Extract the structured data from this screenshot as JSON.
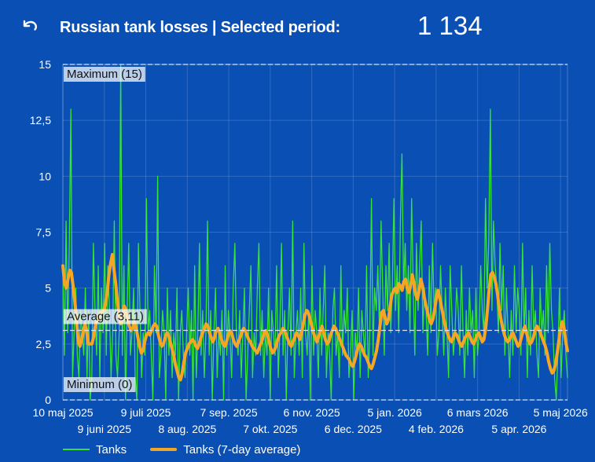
{
  "header": {
    "title": "Russian tank losses | Selected period:",
    "total": "1 134"
  },
  "colors": {
    "background": "#0a4fb4",
    "daily": "#37e23a",
    "average": "#f5a623",
    "refline": "#d7e3f5"
  },
  "chart_data": {
    "type": "line",
    "x_range": [
      "2025-05-10",
      "2026-05-10"
    ],
    "ylim": [
      0,
      15
    ],
    "yticks": [
      "0",
      "2,5",
      "5",
      "7,5",
      "10",
      "12,5",
      "15"
    ],
    "xticks_top": [
      {
        "label": "10 maj 2025",
        "date": "2025-05-10"
      },
      {
        "label": "9 juli 2025",
        "date": "2025-07-09"
      },
      {
        "label": "7 sep. 2025",
        "date": "2025-09-07"
      },
      {
        "label": "6 nov. 2025",
        "date": "2025-11-06"
      },
      {
        "label": "5 jan. 2026",
        "date": "2026-01-05"
      },
      {
        "label": "6 mars 2026",
        "date": "2026-03-06"
      },
      {
        "label": "5 maj 2026",
        "date": "2026-05-05"
      }
    ],
    "xticks_bottom": [
      {
        "label": "9 juni 2025",
        "date": "2025-06-09"
      },
      {
        "label": "8 aug. 2025",
        "date": "2025-08-08"
      },
      {
        "label": "7 okt. 2025",
        "date": "2025-10-07"
      },
      {
        "label": "6 dec. 2025",
        "date": "2025-12-06"
      },
      {
        "label": "4 feb. 2026",
        "date": "2026-02-04"
      },
      {
        "label": "5 apr. 2026",
        "date": "2026-04-05"
      }
    ],
    "reference_lines": [
      {
        "label": "Maximum (15)",
        "value": 15
      },
      {
        "label": "Average (3,11)",
        "value": 3.11
      },
      {
        "label": "Minimum (0)",
        "value": 0
      }
    ],
    "grid": true,
    "series": [
      {
        "name": "Tanks",
        "values": [
          6,
          2,
          8,
          3,
          7,
          13,
          1,
          3,
          5,
          2,
          1,
          4,
          3,
          2,
          5,
          1,
          4,
          0,
          1,
          7,
          4,
          2,
          6,
          1,
          5,
          3,
          7,
          2,
          6,
          4,
          1,
          3,
          8,
          2,
          1,
          3,
          15,
          2,
          6,
          0,
          4,
          7,
          2,
          3,
          5,
          1,
          0,
          7,
          4,
          1,
          3,
          2,
          9,
          3,
          4,
          2,
          0,
          6,
          3,
          10,
          1,
          2,
          4,
          3,
          0,
          5,
          2,
          4,
          1,
          3,
          2,
          5,
          0,
          3,
          4,
          2,
          1,
          3,
          5,
          2,
          4,
          0,
          6,
          1,
          3,
          7,
          2,
          4,
          1,
          3,
          8,
          2,
          4,
          0,
          3,
          5,
          1,
          3,
          2,
          4,
          0,
          6,
          2,
          4,
          3,
          1,
          5,
          7,
          3,
          2,
          4,
          1,
          3,
          5,
          0,
          2,
          4,
          6,
          1,
          3,
          2,
          5,
          7,
          2,
          4,
          1,
          3,
          2,
          5,
          0,
          4,
          3,
          2,
          6,
          1,
          3,
          7,
          2,
          4,
          0,
          3,
          5,
          2,
          8,
          1,
          3,
          4,
          2,
          5,
          1,
          7,
          3,
          2,
          4,
          0,
          6,
          2,
          4,
          3,
          1,
          5,
          2,
          4,
          6,
          1,
          3,
          2,
          0,
          4,
          5,
          2,
          3,
          1,
          6,
          2,
          4,
          3,
          5,
          1,
          2,
          4,
          0,
          3,
          2,
          5,
          1,
          4,
          3,
          2,
          6,
          1,
          3,
          9,
          2,
          5,
          4,
          6,
          3,
          8,
          5,
          2,
          6,
          4,
          7,
          3,
          5,
          9,
          4,
          6,
          3,
          8,
          11,
          5,
          7,
          4,
          6,
          3,
          9,
          5,
          2,
          7,
          4,
          6,
          8,
          3,
          5,
          4,
          2,
          6,
          3,
          7,
          4,
          5,
          2,
          3,
          6,
          4,
          2,
          5,
          3,
          1,
          6,
          4,
          2,
          3,
          5,
          4,
          2,
          6,
          3,
          1,
          4,
          2,
          5,
          3,
          4,
          1,
          5,
          2,
          3,
          6,
          4,
          3,
          9,
          5,
          7,
          13,
          4,
          8,
          6,
          5,
          3,
          7,
          4,
          6,
          2,
          5,
          3,
          1,
          4,
          2,
          6,
          3,
          5,
          4,
          2,
          7,
          3,
          5,
          1,
          4,
          2,
          6,
          3,
          4,
          2,
          1,
          5,
          3,
          4,
          2,
          6,
          3,
          7,
          4,
          3,
          1,
          0,
          2,
          5,
          1,
          3,
          4,
          2,
          1
        ]
      },
      {
        "name": "Tanks (7-day average)",
        "values": [
          6.0,
          5.2,
          5.0,
          5.4,
          5.8,
          5.7,
          5.1,
          4.4,
          3.6,
          2.6,
          2.4,
          2.7,
          3.1,
          3.4,
          3.0,
          2.5,
          2.5,
          2.5,
          2.8,
          3.3,
          3.6,
          3.7,
          3.9,
          3.9,
          4.0,
          4.3,
          4.8,
          5.6,
          6.1,
          6.5,
          5.8,
          5.2,
          4.4,
          3.7,
          3.4,
          3.6,
          4.2,
          4.0,
          3.6,
          3.3,
          3.1,
          3.2,
          3.5,
          3.2,
          2.8,
          2.4,
          2.1,
          2.2,
          2.6,
          2.9,
          3.0,
          2.9,
          3.1,
          3.3,
          3.4,
          3.3,
          2.9,
          2.6,
          2.4,
          2.5,
          2.8,
          3.0,
          2.9,
          2.6,
          2.3,
          2.0,
          1.6,
          1.3,
          1.0,
          0.9,
          1.2,
          1.7,
          2.1,
          2.3,
          2.5,
          2.6,
          2.7,
          2.6,
          2.4,
          2.3,
          2.5,
          2.8,
          3.0,
          3.2,
          3.4,
          3.3,
          3.0,
          2.8,
          2.6,
          2.8,
          3.1,
          3.2,
          3.0,
          2.7,
          2.5,
          2.4,
          2.6,
          2.9,
          3.1,
          3.0,
          2.7,
          2.5,
          2.4,
          2.6,
          2.8,
          3.0,
          3.2,
          3.1,
          2.9,
          2.7,
          2.6,
          2.4,
          2.3,
          2.2,
          2.1,
          2.3,
          2.5,
          2.7,
          3.0,
          3.1,
          2.9,
          2.6,
          2.3,
          2.1,
          2.2,
          2.4,
          2.7,
          2.9,
          3.0,
          3.2,
          3.1,
          2.9,
          2.7,
          2.5,
          2.4,
          2.6,
          2.8,
          3.0,
          2.9,
          2.7,
          3.0,
          3.4,
          3.8,
          4.0,
          3.9,
          3.6,
          3.3,
          3.0,
          2.8,
          2.6,
          2.8,
          3.1,
          3.3,
          3.0,
          2.7,
          2.5,
          2.6,
          2.9,
          3.1,
          3.3,
          3.2,
          3.0,
          2.8,
          2.6,
          2.4,
          2.2,
          2.0,
          1.9,
          1.8,
          1.6,
          1.5,
          1.7,
          2.0,
          2.3,
          2.5,
          2.4,
          2.2,
          2.0,
          1.9,
          1.7,
          1.5,
          1.4,
          1.6,
          1.9,
          2.2,
          2.7,
          3.3,
          3.9,
          4.0,
          3.7,
          3.4,
          3.6,
          4.2,
          4.7,
          4.9,
          5.0,
          4.8,
          5.2,
          5.1,
          4.9,
          5.3,
          5.4,
          5.0,
          4.8,
          5.1,
          5.6,
          5.2,
          4.7,
          4.5,
          4.9,
          5.4,
          5.1,
          4.6,
          4.2,
          3.9,
          3.6,
          3.4,
          3.6,
          4.0,
          4.5,
          4.9,
          4.6,
          4.2,
          3.8,
          3.4,
          3.1,
          2.9,
          2.7,
          2.6,
          2.8,
          3.0,
          2.9,
          2.7,
          2.5,
          2.4,
          2.6,
          2.8,
          2.9,
          3.0,
          2.8,
          2.6,
          2.5,
          2.7,
          2.9,
          3.0,
          2.8,
          2.6,
          2.7,
          3.2,
          4.0,
          4.9,
          5.6,
          5.7,
          5.5,
          5.2,
          4.7,
          4.1,
          3.6,
          3.2,
          2.9,
          2.7,
          2.6,
          2.7,
          2.9,
          3.0,
          2.8,
          2.6,
          2.4,
          2.5,
          2.8,
          3.1,
          3.3,
          3.0,
          2.7,
          2.5,
          2.6,
          2.8,
          3.1,
          3.3,
          3.2,
          3.0,
          2.8,
          2.6,
          2.4,
          2.1,
          1.7,
          1.4,
          1.2,
          1.3,
          1.6,
          2.1,
          2.7,
          3.2,
          3.5,
          3.2,
          2.6,
          2.2
        ]
      }
    ]
  },
  "legend": {
    "daily_label": "Tanks",
    "average_label": "Tanks (7-day average)"
  }
}
